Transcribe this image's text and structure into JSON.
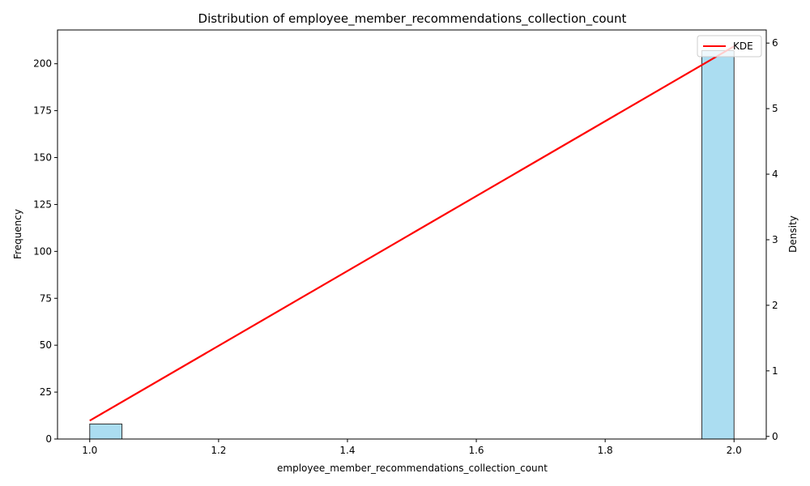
{
  "chart_data": {
    "type": "bar",
    "title": "Distribution of employee_member_recommendations_collection_count",
    "xlabel": "employee_member_recommendations_collection_count",
    "ylabel": "Frequency",
    "y2label": "Density",
    "xlim": [
      0.95,
      2.05
    ],
    "ylim": [
      0,
      218
    ],
    "y2lim": [
      -0.04,
      6.2
    ],
    "x_ticks": [
      1.0,
      1.2,
      1.4,
      1.6,
      1.8,
      2.0
    ],
    "x_tick_labels": [
      "1.0",
      "1.2",
      "1.4",
      "1.6",
      "1.8",
      "2.0"
    ],
    "y_ticks": [
      0,
      25,
      50,
      75,
      100,
      125,
      150,
      175,
      200
    ],
    "y_tick_labels": [
      "0",
      "25",
      "50",
      "75",
      "100",
      "125",
      "150",
      "175",
      "200"
    ],
    "y2_ticks": [
      0,
      1,
      2,
      3,
      4,
      5,
      6
    ],
    "y2_tick_labels": [
      "0",
      "1",
      "2",
      "3",
      "4",
      "5",
      "6"
    ],
    "bins": [
      {
        "start": 1.0,
        "end": 1.05,
        "count": 8
      },
      {
        "start": 1.95,
        "end": 2.0,
        "count": 207
      }
    ],
    "kde": {
      "name": "KDE",
      "x": [
        1.0,
        2.0
      ],
      "y": [
        0.24,
        5.95
      ]
    },
    "bar_color": "#87CEEB",
    "bar_edge_color": "#333333",
    "kde_color": "#ff0000",
    "legend_position": "top-right",
    "grid": false
  }
}
